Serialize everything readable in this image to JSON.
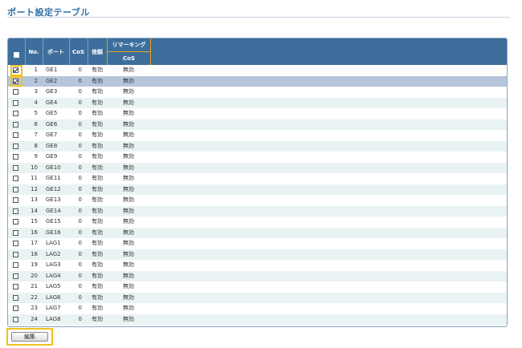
{
  "page": {
    "title": "ポート設定テーブル"
  },
  "table": {
    "headers": {
      "no": "No.",
      "port": "ポート",
      "cos": "CoS",
      "trust": "信頼",
      "remarking": "リマーキング",
      "remarking_cos": "CoS"
    },
    "rows": [
      {
        "no": "1",
        "port": "GE1",
        "cos": "0",
        "trust": "有効",
        "remark": "無効",
        "checked": true
      },
      {
        "no": "2",
        "port": "GE2",
        "cos": "0",
        "trust": "有効",
        "remark": "無効",
        "checked": true
      },
      {
        "no": "3",
        "port": "GE3",
        "cos": "0",
        "trust": "有効",
        "remark": "無効",
        "checked": false
      },
      {
        "no": "4",
        "port": "GE4",
        "cos": "0",
        "trust": "有効",
        "remark": "無効",
        "checked": false
      },
      {
        "no": "5",
        "port": "GE5",
        "cos": "0",
        "trust": "有効",
        "remark": "無効",
        "checked": false
      },
      {
        "no": "6",
        "port": "GE6",
        "cos": "0",
        "trust": "有効",
        "remark": "無効",
        "checked": false
      },
      {
        "no": "7",
        "port": "GE7",
        "cos": "0",
        "trust": "有効",
        "remark": "無効",
        "checked": false
      },
      {
        "no": "8",
        "port": "GE8",
        "cos": "0",
        "trust": "有効",
        "remark": "無効",
        "checked": false
      },
      {
        "no": "9",
        "port": "GE9",
        "cos": "0",
        "trust": "有効",
        "remark": "無効",
        "checked": false
      },
      {
        "no": "10",
        "port": "GE10",
        "cos": "0",
        "trust": "有効",
        "remark": "無効",
        "checked": false
      },
      {
        "no": "11",
        "port": "GE11",
        "cos": "0",
        "trust": "有効",
        "remark": "無効",
        "checked": false
      },
      {
        "no": "12",
        "port": "GE12",
        "cos": "0",
        "trust": "有効",
        "remark": "無効",
        "checked": false
      },
      {
        "no": "13",
        "port": "GE13",
        "cos": "0",
        "trust": "有効",
        "remark": "無効",
        "checked": false
      },
      {
        "no": "14",
        "port": "GE14",
        "cos": "0",
        "trust": "有効",
        "remark": "無効",
        "checked": false
      },
      {
        "no": "15",
        "port": "GE15",
        "cos": "0",
        "trust": "有効",
        "remark": "無効",
        "checked": false
      },
      {
        "no": "16",
        "port": "GE16",
        "cos": "0",
        "trust": "有効",
        "remark": "無効",
        "checked": false
      },
      {
        "no": "17",
        "port": "LAG1",
        "cos": "0",
        "trust": "有効",
        "remark": "無効",
        "checked": false
      },
      {
        "no": "18",
        "port": "LAG2",
        "cos": "0",
        "trust": "有効",
        "remark": "無効",
        "checked": false
      },
      {
        "no": "19",
        "port": "LAG3",
        "cos": "0",
        "trust": "有効",
        "remark": "無効",
        "checked": false
      },
      {
        "no": "20",
        "port": "LAG4",
        "cos": "0",
        "trust": "有効",
        "remark": "無効",
        "checked": false
      },
      {
        "no": "21",
        "port": "LAG5",
        "cos": "0",
        "trust": "有効",
        "remark": "無効",
        "checked": false
      },
      {
        "no": "22",
        "port": "LAG6",
        "cos": "0",
        "trust": "有効",
        "remark": "無効",
        "checked": false
      },
      {
        "no": "23",
        "port": "LAG7",
        "cos": "0",
        "trust": "有効",
        "remark": "無効",
        "checked": false
      },
      {
        "no": "24",
        "port": "LAG8",
        "cos": "0",
        "trust": "有効",
        "remark": "無効",
        "checked": false
      }
    ]
  },
  "actions": {
    "edit_label": "編集"
  },
  "colors": {
    "header_bg": "#3d6e9c",
    "selected_row": "#b6c5dc",
    "stripe_row": "#eaf3f3",
    "highlight": "#f2c21a",
    "title": "#2f6fa6"
  }
}
